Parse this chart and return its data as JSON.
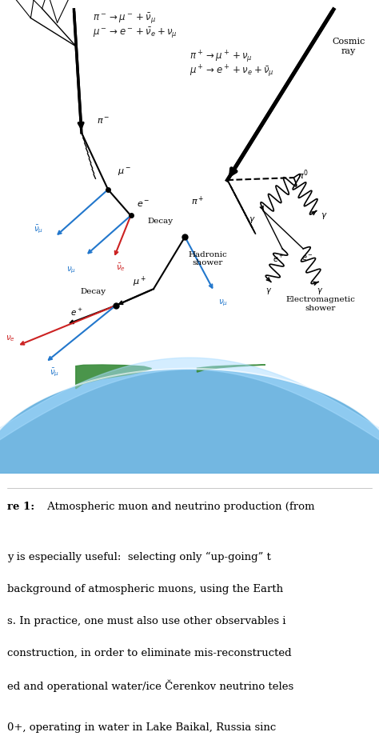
{
  "bg_color": "#ffffff",
  "fig_width": 4.74,
  "fig_height": 9.4,
  "dpi": 100,
  "eq_left_1": "$\\pi^- \\rightarrow \\mu^- + \\bar{\\nu}_{\\mu}$",
  "eq_left_2": "$\\mu^- \\rightarrow e^- + \\bar{\\nu}_e + \\nu_{\\mu}$",
  "eq_right_1": "$\\pi^+ \\rightarrow \\mu^+ + \\nu_{\\mu}$",
  "eq_right_2": "$\\mu^+ \\rightarrow e^+ + \\nu_e + \\bar{\\nu}_{\\mu}$",
  "caption_bold": "re 1:",
  "caption_rest": " Atmospheric muon and neutrino production (from",
  "body_lines": [
    "y is especially useful:  selecting only “up-going” t",
    "background of atmospheric muons, using the Earth",
    "s. In practice, one must also use other observables i",
    "construction, in order to eliminate mis-reconstructed",
    "ed and operational water/ice Čerenkov neutrino teles"
  ],
  "body_line2": "0+, operating in water in Lake Baikal, Russia sinc"
}
